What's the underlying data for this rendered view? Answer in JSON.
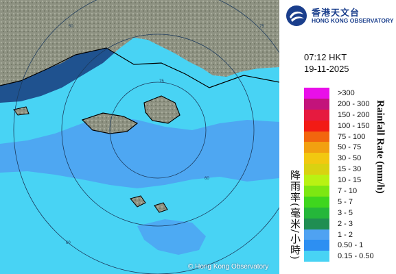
{
  "header": {
    "org_name_cn": "香港天文台",
    "org_name_en": "HONG KONG OBSERVATORY",
    "logo_icon": "hko-logo-icon"
  },
  "timestamp": {
    "time": "07:12 HKT",
    "date": "19-11-2025"
  },
  "legend": {
    "title_cn": "降雨率(毫米/小時)",
    "title_en": "Rainfall Rate (mm/h)",
    "items": [
      {
        "label": ">300",
        "color": "#e90fe9"
      },
      {
        "label": "200 - 300",
        "color": "#c3137b"
      },
      {
        "label": "150 - 200",
        "color": "#e61a3f"
      },
      {
        "label": "100 - 150",
        "color": "#f21b15"
      },
      {
        "label": "75 - 100",
        "color": "#f2660e"
      },
      {
        "label": "50 - 75",
        "color": "#f2a010"
      },
      {
        "label": "30 - 50",
        "color": "#f2c810"
      },
      {
        "label": "15 - 30",
        "color": "#d9d211"
      },
      {
        "label": "10 - 15",
        "color": "#b9f213"
      },
      {
        "label": "7 - 10",
        "color": "#7de712"
      },
      {
        "label": "5 - 7",
        "color": "#3fd61e"
      },
      {
        "label": "3 - 5",
        "color": "#25b73a"
      },
      {
        "label": "2 - 3",
        "color": "#1f8e52"
      },
      {
        "label": "1 - 2",
        "color": "#4fa2f2"
      },
      {
        "label": "0.50 - 1",
        "color": "#2d8ff2"
      },
      {
        "label": "0.15 - 0.50",
        "color": "#48d3f4"
      }
    ]
  },
  "map": {
    "range_labels": [
      "75",
      "50",
      "75",
      "60",
      "60"
    ],
    "watermark": "© Hong Kong Observatory",
    "colors": {
      "sea": "#1d4e90",
      "land": "#8c9080",
      "rain_light": "#48d3f4",
      "rain_medium": "#4fa2f2"
    }
  }
}
